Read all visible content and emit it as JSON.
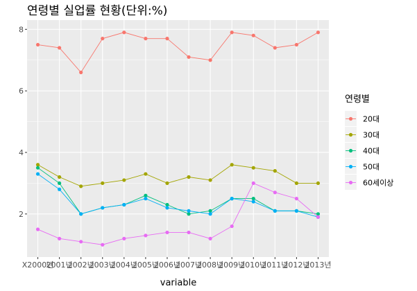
{
  "chart_data": {
    "type": "line",
    "title": "연령별 실업률 현황(단위:%)",
    "xlabel": "variable",
    "ylabel": "",
    "ylim": [
      0.6,
      8.3
    ],
    "yticks": [
      2,
      4,
      6,
      8
    ],
    "grid": true,
    "legend": {
      "title": "연령별",
      "position": "right"
    },
    "categories": [
      "X2000년",
      "2001년",
      "2002년",
      "2003년",
      "2004년",
      "2005년",
      "2006년",
      "2007년",
      "2008년",
      "2009년",
      "2010년",
      "2011년",
      "2012년",
      "2013년"
    ],
    "series": [
      {
        "name": "20대",
        "color": "#F8766D",
        "values": [
          7.5,
          7.4,
          6.6,
          7.7,
          7.9,
          7.7,
          7.7,
          7.1,
          7.0,
          7.9,
          7.8,
          7.4,
          7.5,
          7.9
        ]
      },
      {
        "name": "30대",
        "color": "#A3A500",
        "values": [
          3.6,
          3.2,
          2.9,
          3.0,
          3.1,
          3.3,
          3.0,
          3.2,
          3.1,
          3.6,
          3.5,
          3.4,
          3.0,
          3.0
        ]
      },
      {
        "name": "40대",
        "color": "#00BF7D",
        "values": [
          3.5,
          3.0,
          2.0,
          2.2,
          2.3,
          2.6,
          2.3,
          2.0,
          2.1,
          2.5,
          2.5,
          2.1,
          2.1,
          2.0
        ]
      },
      {
        "name": "50대",
        "color": "#00B0F6",
        "values": [
          3.3,
          2.8,
          2.0,
          2.2,
          2.3,
          2.5,
          2.2,
          2.1,
          2.0,
          2.5,
          2.4,
          2.1,
          2.1,
          1.9
        ]
      },
      {
        "name": "60세이상",
        "color": "#E76BF3",
        "values": [
          1.5,
          1.2,
          1.1,
          1.0,
          1.2,
          1.3,
          1.4,
          1.4,
          1.2,
          1.6,
          3.0,
          2.7,
          2.5,
          1.9
        ]
      }
    ]
  },
  "style": {
    "panel_bg": "#EBEBEB",
    "grid_major": "#FFFFFF"
  }
}
